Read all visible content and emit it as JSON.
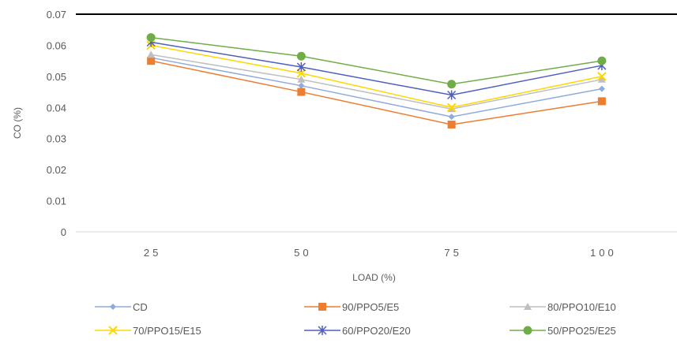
{
  "chart_data": {
    "type": "line",
    "title": "",
    "xlabel": "LOAD (%)",
    "ylabel": "CO (%)",
    "categories": [
      "25",
      "50",
      "75",
      "100"
    ],
    "ylim": [
      0,
      0.07
    ],
    "yticks": [
      "0",
      "0.01",
      "0.02",
      "0.03",
      "0.04",
      "0.05",
      "0.06",
      "0.07"
    ],
    "grid": false,
    "legend_position": "bottom",
    "series": [
      {
        "name": "CD",
        "values": [
          0.056,
          0.047,
          0.037,
          0.046
        ],
        "color": "#8FAADC",
        "marker": "diamond"
      },
      {
        "name": "90/PPO5/E5",
        "values": [
          0.055,
          0.045,
          0.0345,
          0.042
        ],
        "color": "#ED7D31",
        "marker": "square"
      },
      {
        "name": "80/PPO10/E10",
        "values": [
          0.057,
          0.049,
          0.0395,
          0.049
        ],
        "color": "#BFBFBF",
        "marker": "triangle"
      },
      {
        "name": "70/PPO15/E15",
        "values": [
          0.06,
          0.051,
          0.04,
          0.05
        ],
        "color": "#FFD700",
        "marker": "x"
      },
      {
        "name": "60/PPO20/E20",
        "values": [
          0.061,
          0.053,
          0.044,
          0.0535
        ],
        "color": "#4F5FBF",
        "marker": "star"
      },
      {
        "name": "50/PPO25/E25",
        "values": [
          0.0625,
          0.0565,
          0.0475,
          0.055
        ],
        "color": "#70AD47",
        "marker": "circle"
      }
    ]
  }
}
